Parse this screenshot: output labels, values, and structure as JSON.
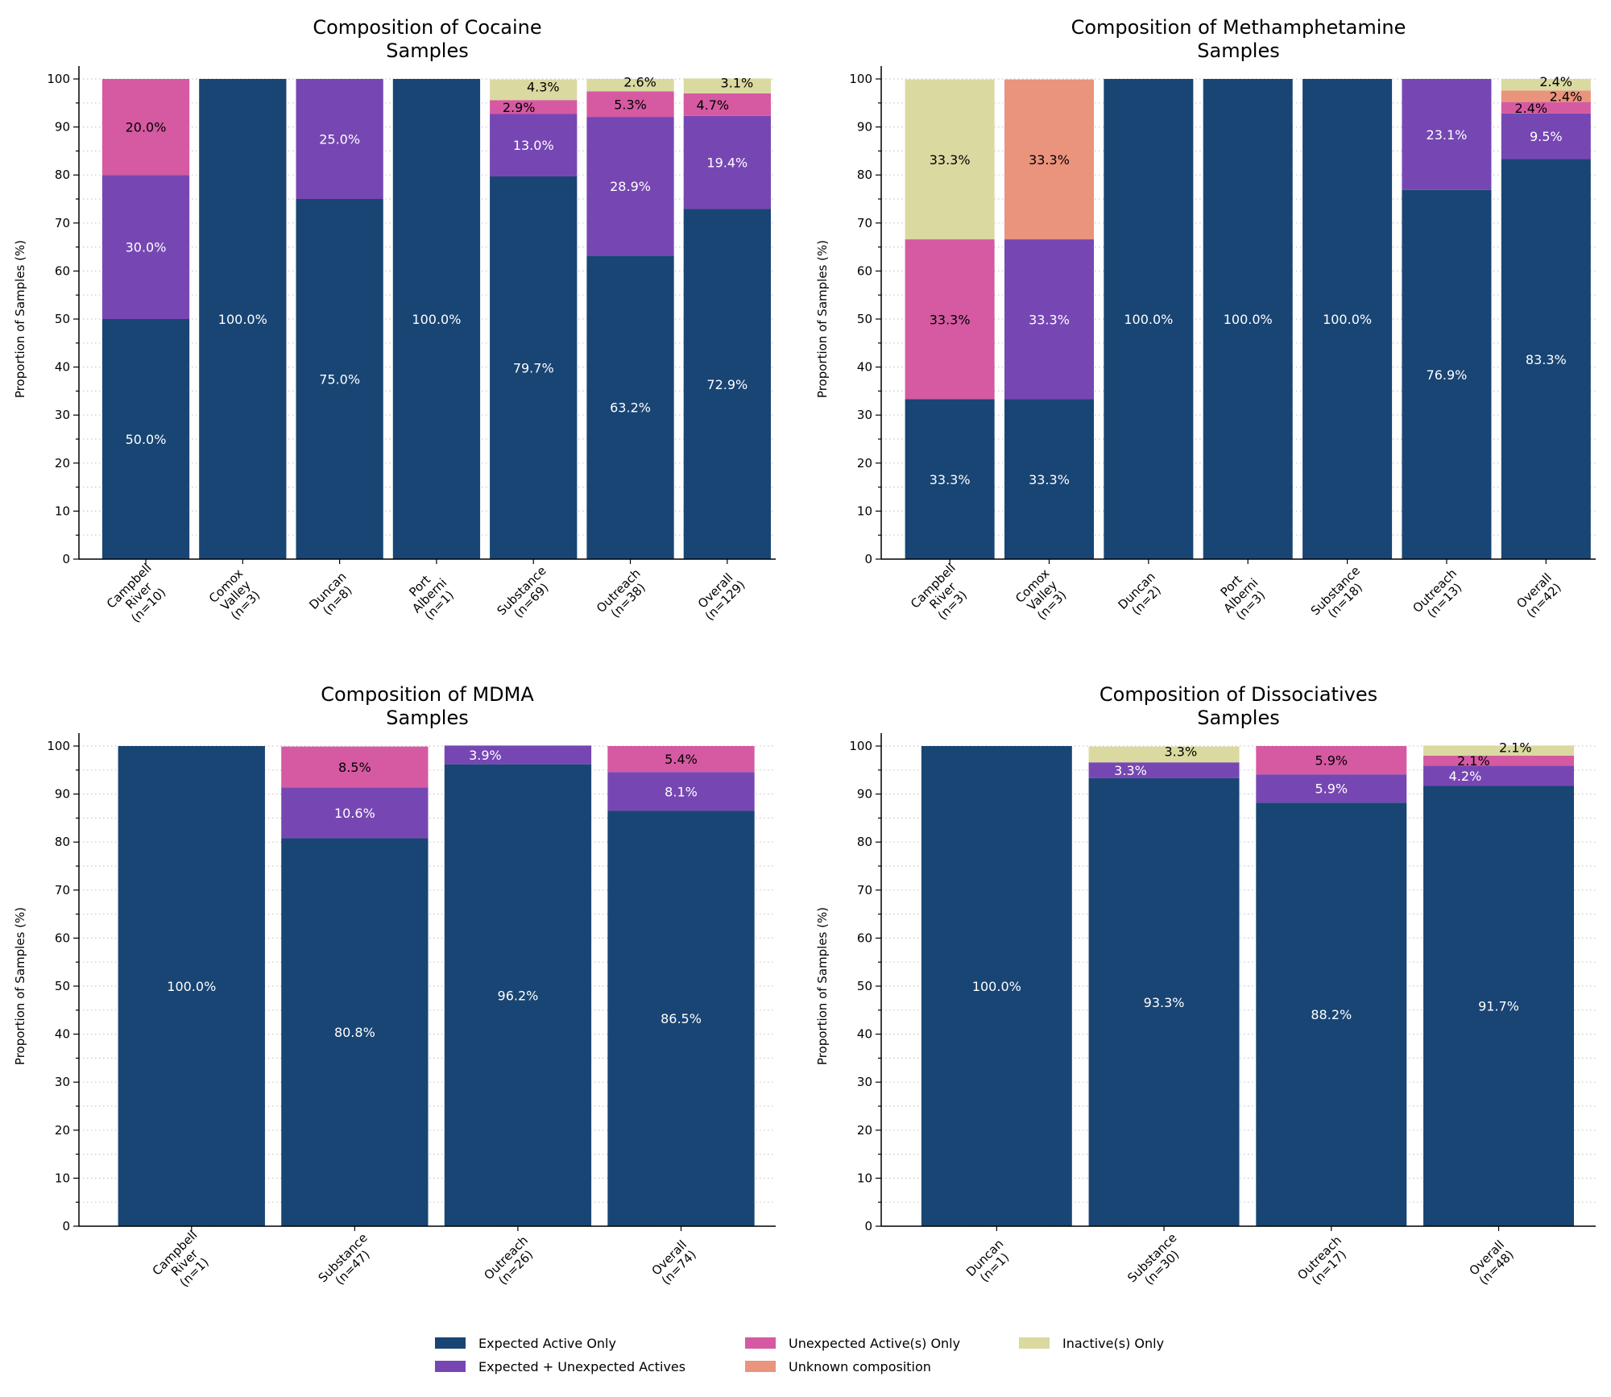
{
  "legend": {
    "placement": "bottom-center",
    "entries": [
      {
        "key": "expected_only",
        "label": "Expected Active Only",
        "color": "#184574"
      },
      {
        "key": "expected_unexpected",
        "label": "Expected + Unexpected Actives",
        "color": "#7647b3"
      },
      {
        "key": "unexpected_only",
        "label": "Unexpected Active(s) Only",
        "color": "#d55aa2"
      },
      {
        "key": "unknown",
        "label": "Unknown composition",
        "color": "#ea937d"
      },
      {
        "key": "inactive_only",
        "label": "Inactive(s) Only",
        "color": "#dad9a0"
      }
    ]
  },
  "chart_data": [
    {
      "type": "bar",
      "stacked": true,
      "title": [
        "Composition of Cocaine",
        "Samples"
      ],
      "xlabel": "",
      "ylabel": "Proportion of Samples (%)",
      "ylim": [
        0,
        100
      ],
      "yticks": [
        0,
        10,
        20,
        30,
        40,
        50,
        60,
        70,
        80,
        90,
        100
      ],
      "grid": "horizontal dotted",
      "categories": [
        [
          "Campbell",
          "River",
          "(n=10)"
        ],
        [
          "Comox",
          "Valley",
          "(n=3)"
        ],
        [
          "Duncan",
          "(n=8)"
        ],
        [
          "Port",
          "Alberni",
          "(n=1)"
        ],
        [
          "Substance",
          "(n=69)"
        ],
        [
          "Outreach",
          "(n=38)"
        ],
        [
          "Overall",
          "(n=129)"
        ]
      ],
      "series": [
        {
          "name": "Expected Active Only",
          "values": [
            50.0,
            100.0,
            75.0,
            100.0,
            79.7,
            63.2,
            72.9
          ]
        },
        {
          "name": "Expected + Unexpected Actives",
          "values": [
            30.0,
            0,
            25.0,
            0,
            13.0,
            28.9,
            19.4
          ]
        },
        {
          "name": "Unexpected Active(s) Only",
          "values": [
            20.0,
            0,
            0,
            0,
            2.9,
            5.3,
            4.7
          ]
        },
        {
          "name": "Unknown composition",
          "values": [
            0,
            0,
            0,
            0,
            0,
            0,
            0
          ]
        },
        {
          "name": "Inactive(s) Only",
          "values": [
            0,
            0,
            0,
            0,
            4.3,
            2.6,
            3.1
          ]
        }
      ]
    },
    {
      "type": "bar",
      "stacked": true,
      "title": [
        "Composition of Methamphetamine",
        "Samples"
      ],
      "xlabel": "",
      "ylabel": "Proportion of Samples (%)",
      "ylim": [
        0,
        100
      ],
      "yticks": [
        0,
        10,
        20,
        30,
        40,
        50,
        60,
        70,
        80,
        90,
        100
      ],
      "grid": "horizontal dotted",
      "categories": [
        [
          "Campbell",
          "River",
          "(n=3)"
        ],
        [
          "Comox",
          "Valley",
          "(n=3)"
        ],
        [
          "Duncan",
          "(n=2)"
        ],
        [
          "Port",
          "Alberni",
          "(n=3)"
        ],
        [
          "Substance",
          "(n=18)"
        ],
        [
          "Outreach",
          "(n=13)"
        ],
        [
          "Overall",
          "(n=42)"
        ]
      ],
      "series": [
        {
          "name": "Expected Active Only",
          "values": [
            33.3,
            33.3,
            100.0,
            100.0,
            100.0,
            76.9,
            83.3
          ]
        },
        {
          "name": "Expected + Unexpected Actives",
          "values": [
            0,
            33.3,
            0,
            0,
            0,
            23.1,
            9.5
          ]
        },
        {
          "name": "Unexpected Active(s) Only",
          "values": [
            33.3,
            0,
            0,
            0,
            0,
            0,
            2.4
          ]
        },
        {
          "name": "Unknown composition",
          "values": [
            0,
            33.3,
            0,
            0,
            0,
            0,
            2.4
          ]
        },
        {
          "name": "Inactive(s) Only",
          "values": [
            33.3,
            0,
            0,
            0,
            0,
            0,
            2.4
          ]
        }
      ]
    },
    {
      "type": "bar",
      "stacked": true,
      "title": [
        "Composition of MDMA",
        "Samples"
      ],
      "xlabel": "",
      "ylabel": "Proportion of Samples (%)",
      "ylim": [
        0,
        100
      ],
      "yticks": [
        0,
        10,
        20,
        30,
        40,
        50,
        60,
        70,
        80,
        90,
        100
      ],
      "grid": "horizontal dotted",
      "categories": [
        [
          "Campbell",
          "River",
          "(n=1)"
        ],
        [
          "Substance",
          "(n=47)"
        ],
        [
          "Outreach",
          "(n=26)"
        ],
        [
          "Overall",
          "(n=74)"
        ]
      ],
      "series": [
        {
          "name": "Expected Active Only",
          "values": [
            100.0,
            80.8,
            96.2,
            86.5
          ]
        },
        {
          "name": "Expected + Unexpected Actives",
          "values": [
            0,
            10.6,
            3.9,
            8.1
          ]
        },
        {
          "name": "Unexpected Active(s) Only",
          "values": [
            0,
            8.5,
            0,
            5.4
          ]
        },
        {
          "name": "Unknown composition",
          "values": [
            0,
            0,
            0,
            0
          ]
        },
        {
          "name": "Inactive(s) Only",
          "values": [
            0,
            0,
            0,
            0
          ]
        }
      ]
    },
    {
      "type": "bar",
      "stacked": true,
      "title": [
        "Composition of Dissociatives",
        "Samples"
      ],
      "xlabel": "",
      "ylabel": "Proportion of Samples (%)",
      "ylim": [
        0,
        100
      ],
      "yticks": [
        0,
        10,
        20,
        30,
        40,
        50,
        60,
        70,
        80,
        90,
        100
      ],
      "grid": "horizontal dotted",
      "categories": [
        [
          "Duncan",
          "(n=1)"
        ],
        [
          "Substance",
          "(n=30)"
        ],
        [
          "Outreach",
          "(n=17)"
        ],
        [
          "Overall",
          "(n=48)"
        ]
      ],
      "series": [
        {
          "name": "Expected Active Only",
          "values": [
            100.0,
            93.3,
            88.2,
            91.7
          ]
        },
        {
          "name": "Expected + Unexpected Actives",
          "values": [
            0,
            3.3,
            5.9,
            4.2
          ]
        },
        {
          "name": "Unexpected Active(s) Only",
          "values": [
            0,
            0,
            5.9,
            2.1
          ]
        },
        {
          "name": "Unknown composition",
          "values": [
            0,
            0,
            0,
            0
          ]
        },
        {
          "name": "Inactive(s) Only",
          "values": [
            0,
            3.3,
            0,
            2.1
          ]
        }
      ]
    }
  ]
}
